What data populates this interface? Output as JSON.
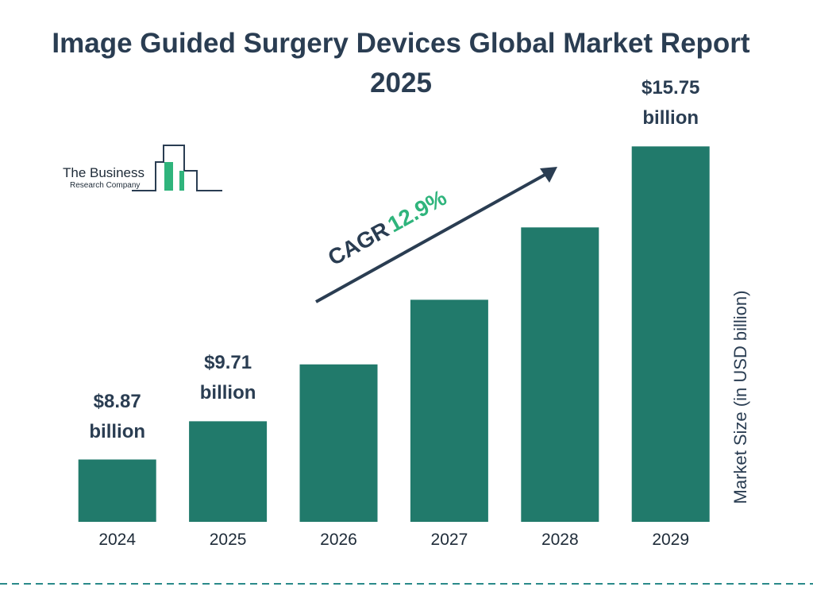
{
  "chart_data": {
    "type": "bar",
    "title": "Image Guided Surgery Devices Global Market Report 2025",
    "categories": [
      "2024",
      "2025",
      "2026",
      "2027",
      "2028",
      "2029"
    ],
    "values": [
      8.87,
      9.71,
      10.96,
      12.38,
      13.97,
      15.75
    ],
    "value_labels": [
      "$8.87 billion",
      "$9.71 billion",
      null,
      null,
      null,
      "$15.75 billion"
    ],
    "color": "#217a6b",
    "ylim": [
      7.5,
      16
    ],
    "y_axis_label": "Market Size (in USD billion)",
    "annotation": {
      "label": "CAGR",
      "value": "12.9%"
    },
    "logo": {
      "line1": "The Business",
      "line2": "Research Company"
    }
  }
}
